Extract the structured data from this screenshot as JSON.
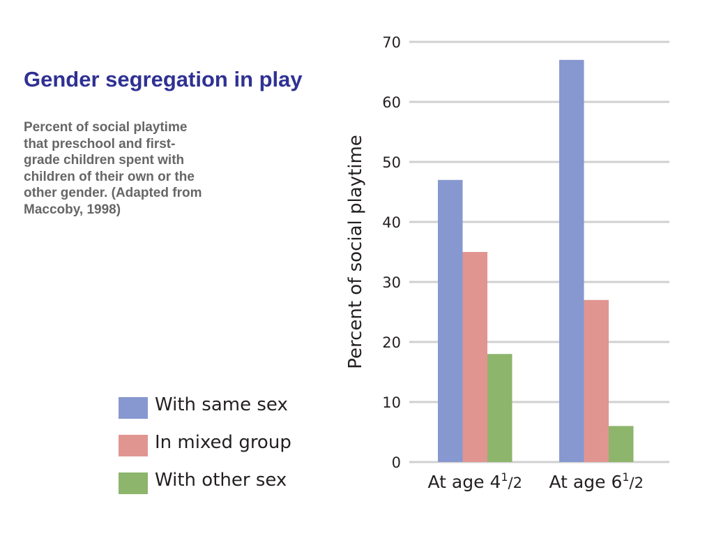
{
  "slide": {
    "title": "Gender segregation in play",
    "caption_lines": [
      "Percent of social playtime",
      "that preschool and first-",
      "grade children spent with",
      "children of their own or the",
      "other gender. (Adapted from",
      "Maccoby, 1998)"
    ]
  },
  "chart_data": {
    "type": "bar",
    "title": "",
    "xlabel": "",
    "ylabel": "Percent of social playtime",
    "ylim": [
      0,
      70
    ],
    "yticks": [
      0,
      10,
      20,
      30,
      40,
      50,
      60,
      70
    ],
    "grid": true,
    "legend_position": "bottom-left",
    "categories": [
      {
        "base": "At age 4",
        "sup": "1",
        "tail": "/2"
      },
      {
        "base": "At age 6",
        "sup": "1",
        "tail": "/2"
      }
    ],
    "series": [
      {
        "name": "With same sex",
        "color": "#8797cf",
        "values": [
          47,
          67
        ]
      },
      {
        "name": "In mixed group",
        "color": "#e19590",
        "values": [
          35,
          27
        ]
      },
      {
        "name": "With other sex",
        "color": "#8db56c",
        "values": [
          18,
          6
        ]
      }
    ],
    "grid_color": "#d0d0d0",
    "text_color": "#231f20"
  }
}
